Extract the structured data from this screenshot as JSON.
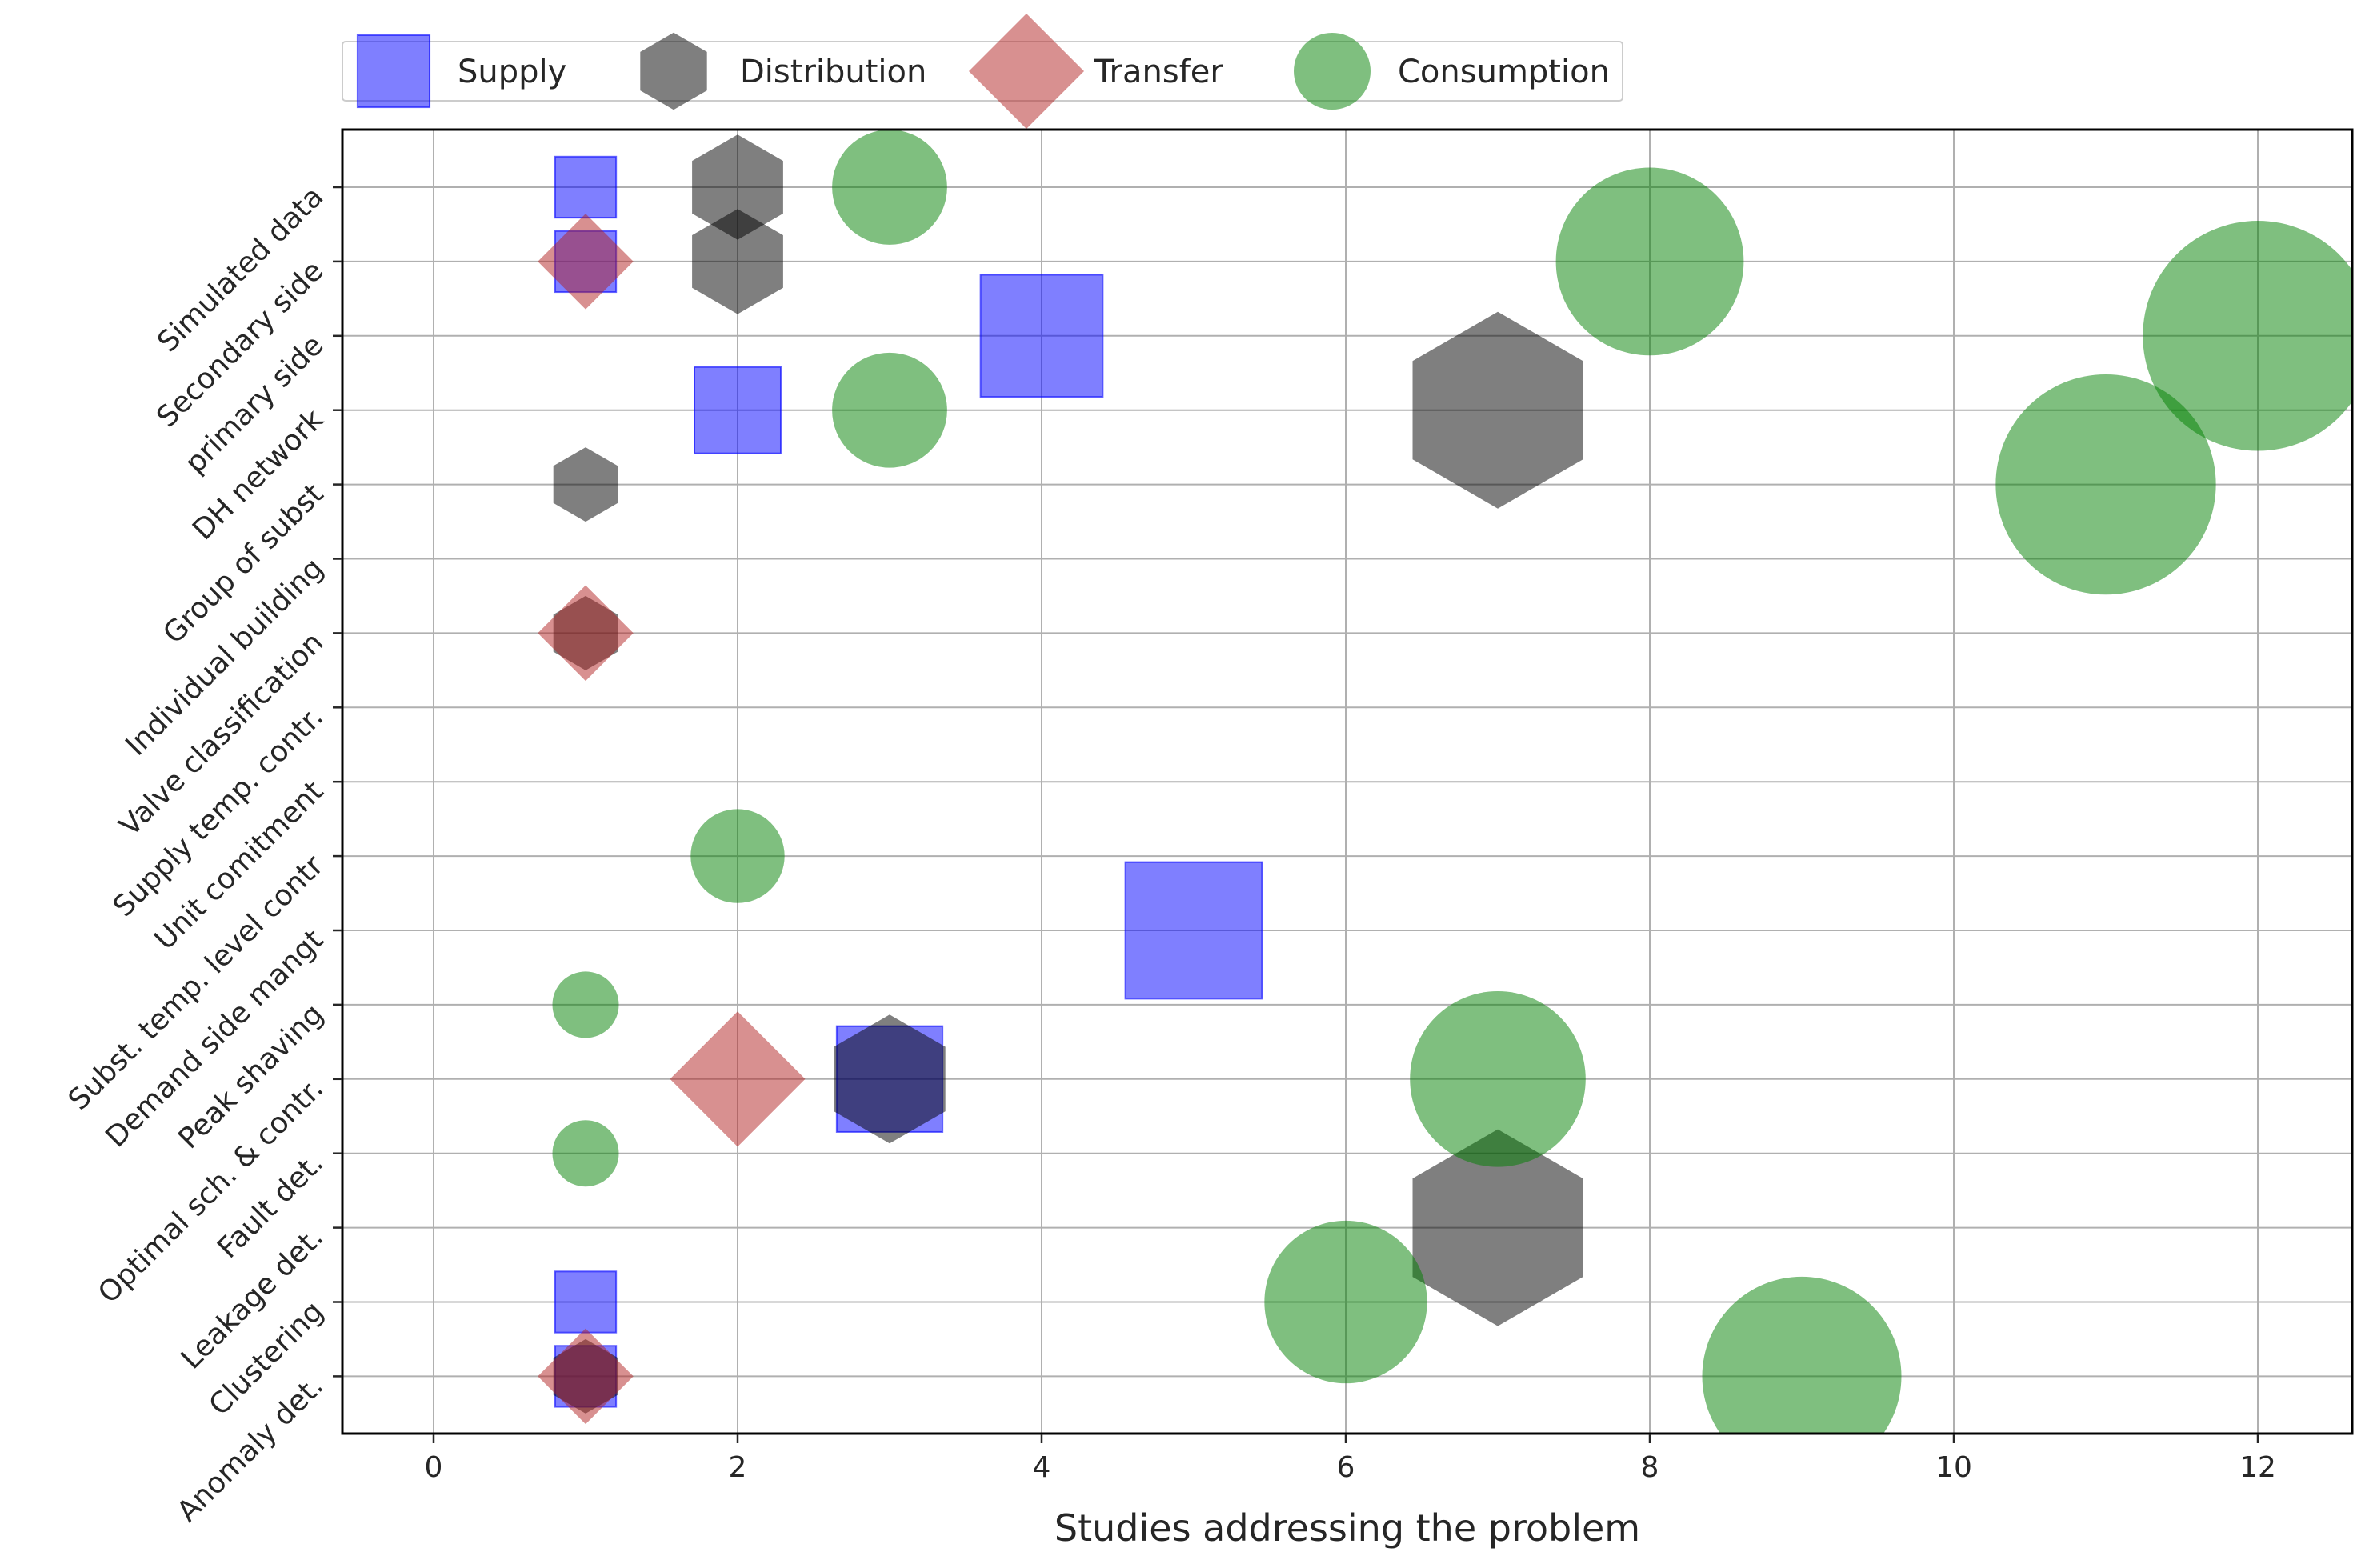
{
  "chart_data": {
    "type": "scatter",
    "title": "",
    "xlabel": "Studies addressing the problem",
    "ylabel": "",
    "xlim": [
      -0.6,
      12.6
    ],
    "x_ticks": [
      "0",
      "2",
      "4",
      "6",
      "8",
      "10",
      "12"
    ],
    "grid": true,
    "legend_position": "top-left, above plot",
    "categories": [
      "Simulated data",
      "Secondary side",
      "primary side",
      "DH network",
      "Group of subst",
      "Individual building",
      "Valve classification",
      "Supply temp. contr.",
      "Unit comitment",
      "Subst. temp. level contr",
      "Demand side mangt",
      "Peak shaving",
      "Optimal sch. & contr.",
      "Fault det.",
      "Leakage det.",
      "Clustering",
      "Anomaly det."
    ],
    "series": [
      {
        "name": "Supply",
        "marker": "square",
        "color": "#0000ff",
        "points": [
          {
            "category": "Simulated data",
            "x": 1
          },
          {
            "category": "Secondary side",
            "x": 1
          },
          {
            "category": "primary side",
            "x": 4
          },
          {
            "category": "DH network",
            "x": 2
          },
          {
            "category": "Demand side mangt",
            "x": 5
          },
          {
            "category": "Optimal sch. & contr.",
            "x": 3
          },
          {
            "category": "Clustering",
            "x": 1
          },
          {
            "category": "Anomaly det.",
            "x": 1
          }
        ]
      },
      {
        "name": "Distribution",
        "marker": "hexagon",
        "color": "#000000",
        "points": [
          {
            "category": "Simulated data",
            "x": 2
          },
          {
            "category": "Secondary side",
            "x": 2
          },
          {
            "category": "DH network",
            "x": 7
          },
          {
            "category": "Group of subst",
            "x": 1
          },
          {
            "category": "Valve classification",
            "x": 1
          },
          {
            "category": "Optimal sch. & contr.",
            "x": 3
          },
          {
            "category": "Leakage det.",
            "x": 7
          },
          {
            "category": "Anomaly det.",
            "x": 1
          }
        ]
      },
      {
        "name": "Transfer",
        "marker": "diamond",
        "color": "#b22222",
        "points": [
          {
            "category": "Secondary side",
            "x": 1
          },
          {
            "category": "Valve classification",
            "x": 1
          },
          {
            "category": "Optimal sch. & contr.",
            "x": 2
          },
          {
            "category": "Anomaly det.",
            "x": 1
          }
        ]
      },
      {
        "name": "Consumption",
        "marker": "circle",
        "color": "#008000",
        "points": [
          {
            "category": "Simulated data",
            "x": 3
          },
          {
            "category": "Secondary side",
            "x": 8
          },
          {
            "category": "primary side",
            "x": 12
          },
          {
            "category": "DH network",
            "x": 3
          },
          {
            "category": "Group of subst",
            "x": 11
          },
          {
            "category": "Subst. temp. level contr",
            "x": 2
          },
          {
            "category": "Peak shaving",
            "x": 1
          },
          {
            "category": "Optimal sch. & contr.",
            "x": 7
          },
          {
            "category": "Fault det.",
            "x": 1
          },
          {
            "category": "Clustering",
            "x": 6
          },
          {
            "category": "Anomaly det.",
            "x": 9
          }
        ]
      }
    ]
  }
}
